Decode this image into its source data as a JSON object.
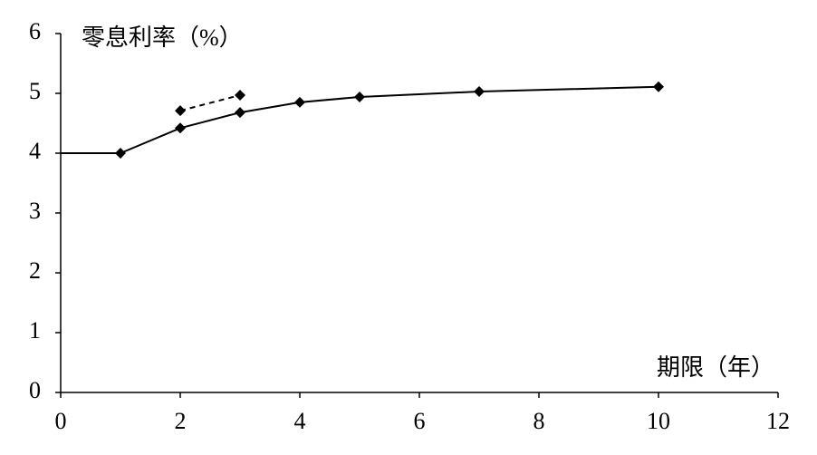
{
  "chart_data": {
    "type": "line",
    "y_label": "零息利率（%）",
    "x_label": "期限（年）",
    "xlim": [
      0,
      12
    ],
    "xticks": [
      0,
      2,
      4,
      6,
      8,
      10,
      12
    ],
    "ylim": [
      0,
      6
    ],
    "yticks": [
      0,
      1,
      2,
      3,
      4,
      5,
      6
    ],
    "series": [
      {
        "color": "#000000",
        "marker": "none",
        "dash": false,
        "x": [
          0,
          1
        ],
        "values": [
          4.0,
          4.0
        ]
      },
      {
        "color": "#000000",
        "marker": "diamond",
        "dash": false,
        "x": [
          1,
          2,
          3,
          4,
          5,
          7,
          10
        ],
        "values": [
          4.0,
          4.42,
          4.68,
          4.85,
          4.94,
          5.03,
          5.11
        ]
      },
      {
        "color": "#000000",
        "marker": "diamond",
        "dash": true,
        "x": [
          2,
          3
        ],
        "values": [
          4.71,
          4.97
        ]
      }
    ]
  }
}
